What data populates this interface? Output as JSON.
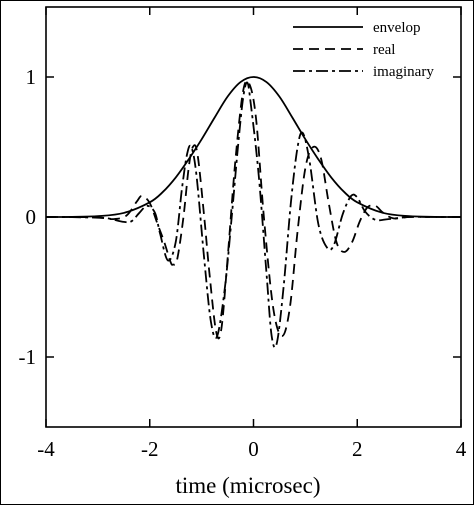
{
  "chart_data": {
    "type": "line",
    "title": "",
    "xlabel": "time (microsec)",
    "ylabel": "",
    "xlim": [
      -4,
      4
    ],
    "ylim": [
      -1.5,
      1.5
    ],
    "grid": false,
    "legend_position": "top-right",
    "x_ticks": [
      -4,
      -2,
      0,
      2,
      4
    ],
    "x_tick_labels": [
      "-4",
      "-2",
      "0",
      "2",
      "4"
    ],
    "y_ticks": [
      -1,
      0,
      1
    ],
    "y_tick_labels": [
      "-1",
      "0",
      "1"
    ],
    "colors": {
      "line": "#000000",
      "background": "#ffffff"
    },
    "series": [
      {
        "name": "envelop",
        "style": "solid",
        "points": [
          [
            -4.0,
            0.0
          ],
          [
            -3.5,
            0.001
          ],
          [
            -3.0,
            0.006
          ],
          [
            -2.5,
            0.029
          ],
          [
            -2.0,
            0.105
          ],
          [
            -1.75,
            0.178
          ],
          [
            -1.5,
            0.282
          ],
          [
            -1.25,
            0.412
          ],
          [
            -1.0,
            0.555
          ],
          [
            -0.75,
            0.71
          ],
          [
            -0.5,
            0.86
          ],
          [
            -0.25,
            0.964
          ],
          [
            0.0,
            1.0
          ],
          [
            0.25,
            0.964
          ],
          [
            0.5,
            0.86
          ],
          [
            0.75,
            0.71
          ],
          [
            1.0,
            0.555
          ],
          [
            1.25,
            0.412
          ],
          [
            1.5,
            0.282
          ],
          [
            1.75,
            0.178
          ],
          [
            2.0,
            0.105
          ],
          [
            2.5,
            0.029
          ],
          [
            3.0,
            0.006
          ],
          [
            3.5,
            0.001
          ],
          [
            4.0,
            0.0
          ]
        ]
      },
      {
        "name": "real",
        "style": "dashed",
        "points": [
          [
            -4.0,
            0.0
          ],
          [
            -3.5,
            0.0
          ],
          [
            -3.0,
            -0.003
          ],
          [
            -2.7,
            -0.015
          ],
          [
            -2.45,
            0.01
          ],
          [
            -2.25,
            0.11
          ],
          [
            -2.15,
            0.15
          ],
          [
            -2.0,
            0.1
          ],
          [
            -1.85,
            -0.05
          ],
          [
            -1.72,
            -0.18
          ],
          [
            -1.6,
            -0.32
          ],
          [
            -1.55,
            -0.34
          ],
          [
            -1.47,
            -0.3
          ],
          [
            -1.35,
            0.0
          ],
          [
            -1.25,
            0.35
          ],
          [
            -1.17,
            0.5
          ],
          [
            -1.08,
            0.45
          ],
          [
            -0.95,
            0.0
          ],
          [
            -0.85,
            -0.4
          ],
          [
            -0.72,
            -0.82
          ],
          [
            -0.62,
            -0.8
          ],
          [
            -0.5,
            -0.3
          ],
          [
            -0.35,
            0.4
          ],
          [
            -0.2,
            0.9
          ],
          [
            -0.08,
            0.95
          ],
          [
            0.05,
            0.7
          ],
          [
            0.2,
            0.0
          ],
          [
            0.38,
            -0.65
          ],
          [
            0.55,
            -0.85
          ],
          [
            0.7,
            -0.65
          ],
          [
            0.85,
            -0.1
          ],
          [
            1.0,
            0.35
          ],
          [
            1.15,
            0.5
          ],
          [
            1.3,
            0.42
          ],
          [
            1.45,
            0.1
          ],
          [
            1.6,
            -0.18
          ],
          [
            1.75,
            -0.25
          ],
          [
            1.9,
            -0.18
          ],
          [
            2.05,
            -0.03
          ],
          [
            2.2,
            0.07
          ],
          [
            2.35,
            0.08
          ],
          [
            2.5,
            0.03
          ],
          [
            2.7,
            -0.01
          ],
          [
            3.0,
            0.0
          ],
          [
            3.5,
            0.0
          ],
          [
            4.0,
            0.0
          ]
        ]
      },
      {
        "name": "imaginary",
        "style": "dashdot",
        "points": [
          [
            -4.0,
            0.0
          ],
          [
            -3.5,
            -0.001
          ],
          [
            -3.0,
            -0.005
          ],
          [
            -2.8,
            -0.01
          ],
          [
            -2.5,
            -0.035
          ],
          [
            -2.35,
            -0.03
          ],
          [
            -2.2,
            0.03
          ],
          [
            -2.05,
            0.08
          ],
          [
            -1.9,
            0.03
          ],
          [
            -1.8,
            -0.12
          ],
          [
            -1.65,
            -0.31
          ],
          [
            -1.5,
            -0.18
          ],
          [
            -1.38,
            0.2
          ],
          [
            -1.28,
            0.45
          ],
          [
            -1.2,
            0.5
          ],
          [
            -1.1,
            0.3
          ],
          [
            -0.95,
            -0.3
          ],
          [
            -0.82,
            -0.75
          ],
          [
            -0.7,
            -0.85
          ],
          [
            -0.55,
            -0.5
          ],
          [
            -0.42,
            0.0
          ],
          [
            -0.3,
            0.5
          ],
          [
            -0.2,
            0.85
          ],
          [
            -0.12,
            0.96
          ],
          [
            -0.05,
            0.8
          ],
          [
            0.1,
            0.3
          ],
          [
            0.25,
            -0.4
          ],
          [
            0.35,
            -0.85
          ],
          [
            0.45,
            -0.9
          ],
          [
            0.58,
            -0.5
          ],
          [
            0.72,
            0.1
          ],
          [
            0.85,
            0.5
          ],
          [
            0.95,
            0.6
          ],
          [
            1.08,
            0.4
          ],
          [
            1.25,
            -0.05
          ],
          [
            1.42,
            -0.22
          ],
          [
            1.55,
            -0.2
          ],
          [
            1.72,
            0.02
          ],
          [
            1.88,
            0.15
          ],
          [
            2.0,
            0.14
          ],
          [
            2.15,
            0.04
          ],
          [
            2.35,
            -0.02
          ],
          [
            2.6,
            -0.015
          ],
          [
            3.0,
            0.0
          ],
          [
            3.5,
            0.0
          ],
          [
            4.0,
            0.0
          ]
        ]
      }
    ]
  }
}
